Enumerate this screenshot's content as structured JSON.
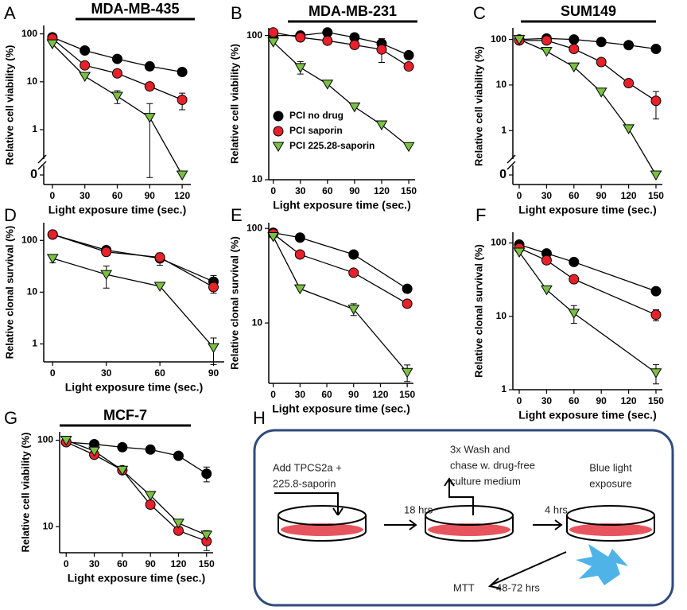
{
  "chart_data": [
    {
      "type": "line",
      "panel_label": "A",
      "title": "MDA-MB-435",
      "xlabel": "Light exposure time (sec.)",
      "ylabel": "Relative cell viability (%)",
      "x": [
        0,
        30,
        60,
        90,
        120
      ],
      "xlim": [
        -8,
        128
      ],
      "xticks": [
        0,
        30,
        60,
        90,
        120
      ],
      "log_y": true,
      "axis_break": true,
      "ylim": [
        0.4,
        150
      ],
      "yticks": [
        0,
        1,
        10,
        100
      ],
      "series": [
        {
          "color": "#000000",
          "marker": "circle",
          "values": [
            85,
            45,
            30,
            21,
            16
          ],
          "errors": [
            null,
            null,
            null,
            null,
            null
          ]
        },
        {
          "color": "#e8202a",
          "marker": "circle",
          "values": [
            80,
            22,
            15,
            8,
            4.2
          ],
          "errors": [
            null,
            null,
            null,
            null,
            1.6
          ]
        },
        {
          "color": "#7ac143",
          "marker": "triangle",
          "values": [
            62,
            13,
            5,
            1.8,
            0
          ],
          "errors": [
            null,
            null,
            1.5,
            1.7,
            null
          ]
        }
      ]
    },
    {
      "type": "line",
      "panel_label": "B",
      "title": "MDA-MB-231",
      "xlabel": "Light exposure time (sec.)",
      "ylabel": "Relative cell viability (%)",
      "x": [
        0,
        30,
        60,
        90,
        120,
        150
      ],
      "xlim": [
        -5,
        157
      ],
      "xticks": [
        0,
        30,
        60,
        90,
        120,
        150
      ],
      "log_y": true,
      "ylim": [
        10,
        113
      ],
      "yticks": [
        10,
        100
      ],
      "legend": "lower left",
      "series": [
        {
          "name": "PCI no drug",
          "color": "#000000",
          "marker": "circle",
          "values": [
            100,
            100,
            105,
            97,
            88,
            73
          ],
          "errors": [
            null,
            null,
            null,
            null,
            null,
            null
          ]
        },
        {
          "name": "PCI saporin",
          "color": "#e8202a",
          "marker": "circle",
          "values": [
            105,
            97,
            92,
            86,
            80,
            61
          ],
          "errors": [
            null,
            null,
            null,
            null,
            15,
            null
          ]
        },
        {
          "name": "PCI 225.28-saporin",
          "color": "#7ac143",
          "marker": "triangle",
          "values": [
            90,
            60,
            46,
            32,
            24,
            17
          ],
          "errors": [
            null,
            6,
            null,
            null,
            null,
            null
          ]
        }
      ]
    },
    {
      "type": "line",
      "panel_label": "C",
      "title": "SUM149",
      "xlabel": "Light exposure time (sec.)",
      "ylabel": "Relative cell viability (%)",
      "x": [
        0,
        30,
        60,
        90,
        120,
        150
      ],
      "xlim": [
        -7,
        157
      ],
      "xticks": [
        0,
        30,
        60,
        90,
        120,
        150
      ],
      "log_y": true,
      "axis_break": true,
      "ylim": [
        0.4,
        180
      ],
      "yticks": [
        0,
        1,
        10,
        100
      ],
      "series": [
        {
          "color": "#000000",
          "marker": "circle",
          "values": [
            100,
            105,
            100,
            88,
            75,
            62
          ],
          "errors": [
            null,
            null,
            null,
            null,
            null,
            null
          ]
        },
        {
          "color": "#e8202a",
          "marker": "circle",
          "values": [
            95,
            95,
            62,
            32,
            11,
            4.5
          ],
          "errors": [
            null,
            null,
            null,
            null,
            2,
            2.7
          ]
        },
        {
          "color": "#7ac143",
          "marker": "triangle",
          "values": [
            100,
            55,
            25,
            7,
            1.1,
            0
          ],
          "errors": [
            null,
            null,
            null,
            null,
            null,
            null
          ]
        }
      ]
    },
    {
      "type": "line",
      "panel_label": "D",
      "xlabel": "Light exposure time (sec.)",
      "ylabel": "Relative clonal survival (%)",
      "x": [
        0,
        30,
        60,
        90
      ],
      "xlim": [
        -5,
        96
      ],
      "xticks": [
        0,
        30,
        60,
        90
      ],
      "log_y": true,
      "ylim": [
        0.45,
        220
      ],
      "yticks": [
        1,
        10,
        100
      ],
      "series": [
        {
          "color": "#000000",
          "marker": "circle",
          "values": [
            130,
            65,
            45,
            16
          ],
          "errors": [
            null,
            10,
            12,
            5
          ]
        },
        {
          "color": "#e8202a",
          "marker": "circle",
          "values": [
            130,
            60,
            47,
            12.5
          ],
          "errors": [
            null,
            null,
            8,
            3
          ]
        },
        {
          "color": "#7ac143",
          "marker": "triangle",
          "values": [
            45,
            22,
            13,
            0.85
          ],
          "errors": [
            8,
            10,
            null,
            0.45
          ]
        }
      ]
    },
    {
      "type": "line",
      "panel_label": "E",
      "xlabel": "Light exposure time (sec.)",
      "ylabel": "Relative clonal survival (%)",
      "x": [
        0,
        30,
        90,
        150
      ],
      "xlim": [
        -5,
        157
      ],
      "xticks": [
        0,
        30,
        60,
        90,
        120,
        150
      ],
      "log_y": true,
      "ylim": [
        2.3,
        115
      ],
      "yticks": [
        10,
        100
      ],
      "series": [
        {
          "color": "#000000",
          "marker": "circle",
          "values": [
            90,
            80,
            53,
            23
          ],
          "errors": [
            null,
            null,
            null,
            null
          ]
        },
        {
          "color": "#e8202a",
          "marker": "circle",
          "values": [
            88,
            53,
            34,
            16
          ],
          "errors": [
            null,
            null,
            null,
            null
          ]
        },
        {
          "color": "#7ac143",
          "marker": "triangle",
          "values": [
            82,
            23,
            14,
            3
          ],
          "errors": [
            null,
            null,
            2,
            0.6
          ]
        }
      ]
    },
    {
      "type": "line",
      "panel_label": "F",
      "xlabel": "Light exposure time (sec.)",
      "ylabel": "Relative clonal survival (%)",
      "x": [
        0,
        30,
        60,
        150
      ],
      "xlim": [
        -7,
        157
      ],
      "xticks": [
        0,
        30,
        60,
        90,
        120,
        150
      ],
      "log_y": true,
      "ylim": [
        1,
        140
      ],
      "yticks": [
        1,
        10,
        100
      ],
      "series": [
        {
          "color": "#000000",
          "marker": "circle",
          "values": [
            95,
            72,
            55,
            22
          ],
          "errors": [
            null,
            null,
            null,
            null
          ]
        },
        {
          "color": "#e8202a",
          "marker": "circle",
          "values": [
            85,
            58,
            32,
            10.5
          ],
          "errors": [
            null,
            null,
            null,
            1.8
          ]
        },
        {
          "color": "#7ac143",
          "marker": "triangle",
          "values": [
            75,
            23,
            11,
            1.7
          ],
          "errors": [
            null,
            null,
            3,
            0.5
          ]
        }
      ]
    },
    {
      "type": "line",
      "panel_label": "G",
      "title": "MCF-7",
      "xlabel": "Light exposure time (sec.)",
      "ylabel": "Relative cell viability (%)",
      "x": [
        0,
        30,
        60,
        90,
        120,
        150
      ],
      "xlim": [
        -7,
        157
      ],
      "xticks": [
        0,
        30,
        60,
        90,
        120,
        150
      ],
      "log_y": true,
      "ylim": [
        5,
        125
      ],
      "yticks": [
        10,
        100
      ],
      "series": [
        {
          "color": "#000000",
          "marker": "circle",
          "values": [
            95,
            90,
            83,
            78,
            66,
            41
          ],
          "errors": [
            null,
            null,
            null,
            null,
            null,
            8
          ]
        },
        {
          "color": "#e8202a",
          "marker": "circle",
          "values": [
            95,
            68,
            45,
            18,
            9,
            6.8
          ],
          "errors": [
            null,
            null,
            null,
            null,
            null,
            1.5
          ]
        },
        {
          "color": "#7ac143",
          "marker": "triangle",
          "values": [
            100,
            75,
            45,
            23,
            11,
            8
          ],
          "errors": [
            null,
            null,
            null,
            null,
            null,
            1
          ]
        }
      ]
    }
  ],
  "diagram": {
    "label": "H",
    "step1": [
      "Add TPCS2a +",
      "225.8-saporin"
    ],
    "arrow1": "18 hrs",
    "step2": [
      "3x Wash and",
      "chase w. drug-free",
      "culture medium"
    ],
    "arrow2": "4 hrs",
    "step3": [
      "Blue light",
      "exposure"
    ],
    "readout": "MTT",
    "arrow3": "48-72 hrs"
  }
}
